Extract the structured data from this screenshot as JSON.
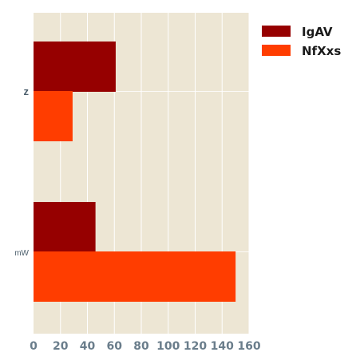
{
  "chart_data": {
    "type": "bar",
    "orientation": "horizontal",
    "categories": [
      "z",
      "mW"
    ],
    "series": [
      {
        "name": "IgAV",
        "values": [
          61,
          46
        ],
        "color": "#960000"
      },
      {
        "name": "NfXxs",
        "values": [
          29,
          150
        ],
        "color": "#ff3d00"
      }
    ],
    "title": "",
    "xlabel": "",
    "ylabel": "",
    "xlim": [
      0,
      160
    ],
    "xticks": [
      0,
      20,
      40,
      60,
      80,
      100,
      120,
      140,
      160
    ],
    "grid": true,
    "legend_position": "top-right",
    "background_color": "#ede6d4",
    "grid_color": "#ffffff"
  }
}
